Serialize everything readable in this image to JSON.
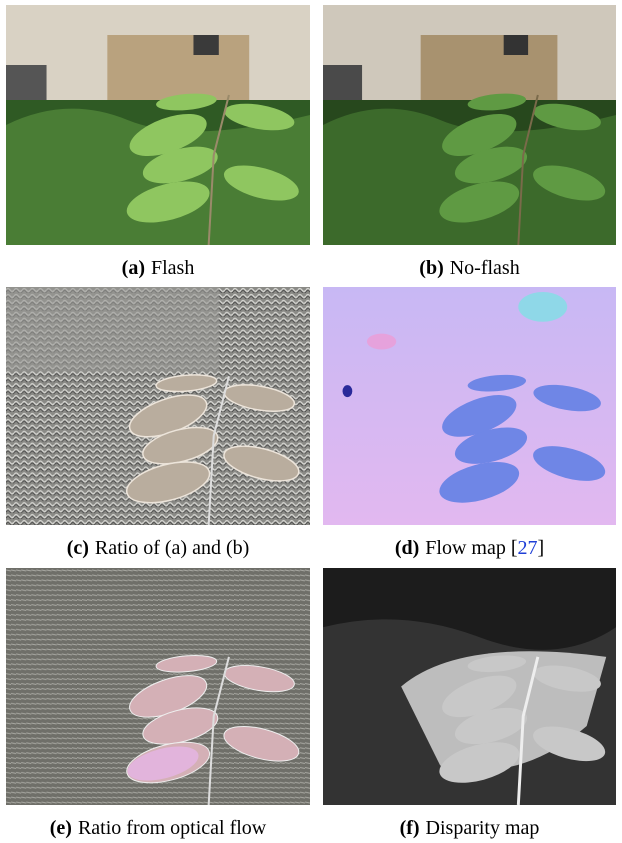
{
  "panels": [
    {
      "label": "(a)",
      "text": "Flash"
    },
    {
      "label": "(b)",
      "text": "No-flash"
    },
    {
      "label": "(c)",
      "text": "Ratio of (a) and (b)"
    },
    {
      "label": "(d)",
      "text": "Flow map",
      "citation": {
        "open": "[",
        "number": "27",
        "close": "]"
      }
    },
    {
      "label": "(e)",
      "text": "Ratio from optical flow"
    },
    {
      "label": "(f)",
      "text": "Disparity map"
    }
  ]
}
